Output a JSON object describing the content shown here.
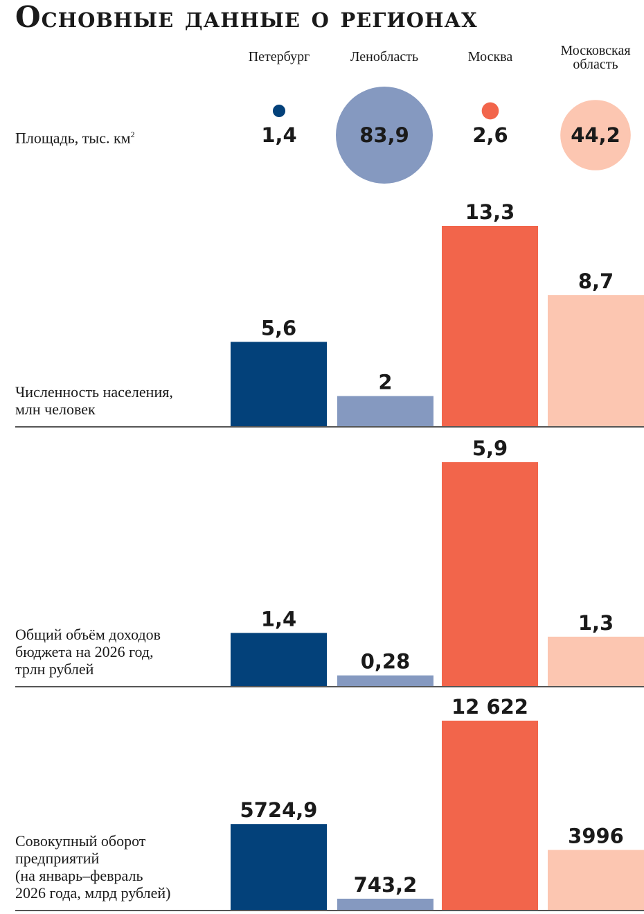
{
  "chart_data": {
    "type": "bar",
    "title": "Основные данные о регионах",
    "categories": [
      "Петербург",
      "Ленобласть",
      "Москва",
      "Московская область"
    ],
    "colors": [
      "#03417a",
      "#8599c0",
      "#f2654b",
      "#fcc6b1"
    ],
    "area": {
      "label": "Площадь, тыс. км",
      "label_sup": "2",
      "values": [
        1.4,
        83.9,
        2.6,
        44.2
      ],
      "labels": [
        "1,4",
        "83,9",
        "2,6",
        "44,2"
      ],
      "type": "bubble"
    },
    "panels": [
      {
        "label_lines": [
          "Численность населения,",
          "млн человек"
        ],
        "values": [
          5.6,
          2,
          13.3,
          8.7
        ],
        "labels": [
          "5,6",
          "2",
          "13,3",
          "8,7"
        ]
      },
      {
        "label_lines": [
          "Общий объём доходов",
          "бюджета на 2026 год,",
          "трлн рублей"
        ],
        "values": [
          1.4,
          0.28,
          5.9,
          1.3
        ],
        "labels": [
          "1,4",
          "0,28",
          "5,9",
          "1,3"
        ]
      },
      {
        "label_lines": [
          "Совокупный оборот",
          "предприятий",
          "(на январь–февраль",
          "2026 года, млрд рублей)"
        ],
        "values": [
          5724.9,
          743.2,
          12622,
          3996
        ],
        "labels": [
          "5724,9",
          "743,2",
          "12 622",
          "3996"
        ]
      }
    ]
  }
}
